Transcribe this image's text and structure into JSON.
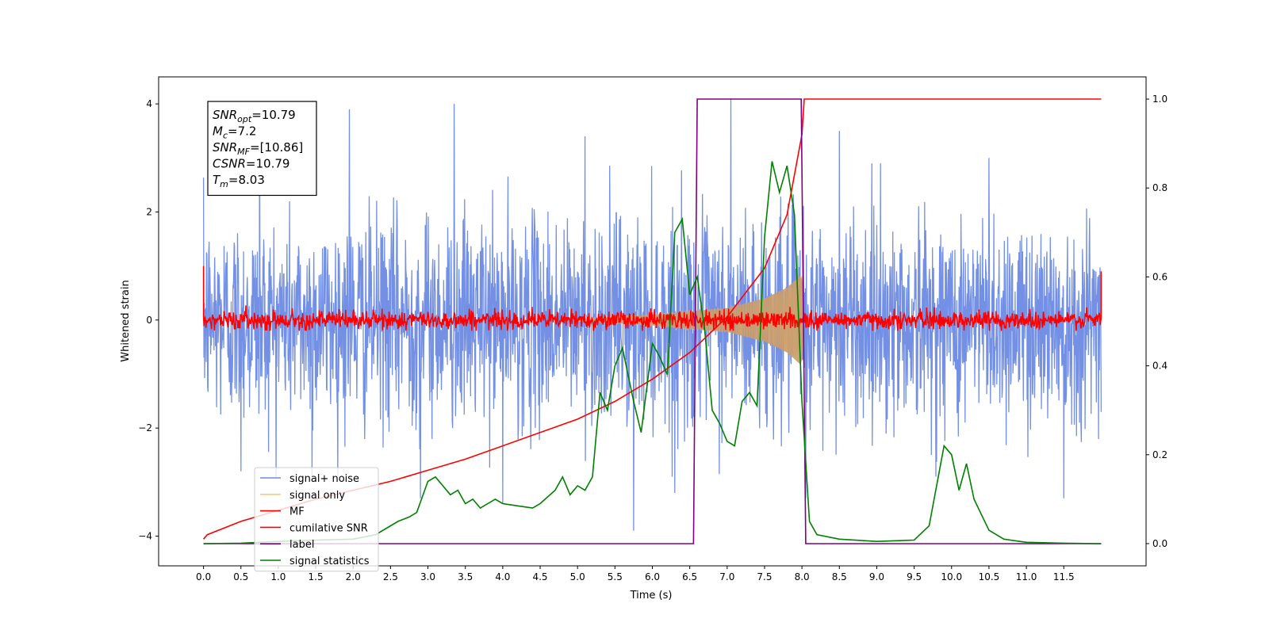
{
  "chart_data": {
    "type": "line",
    "xlabel": "Time (s)",
    "ylabel_left": "Whitened strain",
    "ylabel_right": "",
    "xlim": [
      -0.6,
      12.6
    ],
    "ylim_left": [
      -4.55,
      4.5
    ],
    "ylim_right": [
      -0.05,
      1.05
    ],
    "x_ticks": [
      "0.0",
      "0.5",
      "1.0",
      "1.5",
      "2.0",
      "2.5",
      "3.0",
      "3.5",
      "4.0",
      "4.5",
      "5.0",
      "5.5",
      "6.0",
      "6.5",
      "7.0",
      "7.5",
      "8.0",
      "8.5",
      "9.0",
      "9.5",
      "10.0",
      "10.5",
      "11.0",
      "11.5"
    ],
    "y_ticks_left": [
      "4",
      "2",
      "0",
      "−2",
      "−4"
    ],
    "y_ticks_right": [
      "1.0",
      "0.8",
      "0.6",
      "0.4",
      "0.2",
      "0.0"
    ],
    "grid": false,
    "legend_placement": "lower-left",
    "series": [
      {
        "name": "signal+ noise",
        "axis": "left",
        "color": "#6c8ae4",
        "description_values": {
          "noise_envelope_typical": [
            -2.3,
            2.3
          ],
          "occasional_peaks": 3.9
        },
        "peaks": [
          [
            0.75,
            3.8
          ],
          [
            1.95,
            3.9
          ],
          [
            3.35,
            4.0
          ],
          [
            5.1,
            3.4
          ],
          [
            7.05,
            4.1
          ],
          [
            8.5,
            3.5
          ],
          [
            9.05,
            2.9
          ],
          [
            10.5,
            3.0
          ]
        ],
        "troughs": [
          [
            0.5,
            -2.8
          ],
          [
            1.45,
            -2.9
          ],
          [
            2.9,
            -3.3
          ],
          [
            4.0,
            -3.4
          ],
          [
            5.75,
            -3.9
          ],
          [
            6.3,
            -3.2
          ],
          [
            8.05,
            -3.3
          ],
          [
            11.5,
            -3.3
          ]
        ]
      },
      {
        "name": "signal only",
        "axis": "left",
        "color": "#fdc77a",
        "chirp_start": 5.0,
        "chirp_end": 8.03,
        "envelope": [
          [
            5.0,
            0.02
          ],
          [
            6.0,
            0.1
          ],
          [
            7.0,
            0.22
          ],
          [
            7.5,
            0.4
          ],
          [
            7.8,
            0.6
          ],
          [
            8.0,
            0.85
          ],
          [
            8.03,
            0.0
          ]
        ]
      },
      {
        "name": "MF",
        "axis": "left",
        "color": "#ff0000",
        "noise_amplitude": 0.12,
        "edge_values": [
          [
            0.0,
            1.0
          ],
          [
            12.0,
            0.9
          ]
        ]
      },
      {
        "name": "cumilative SNR",
        "axis": "right",
        "color": "#ff0000",
        "x": [
          0.0,
          0.05,
          0.5,
          1.0,
          1.5,
          2.0,
          2.5,
          3.0,
          3.5,
          4.0,
          4.5,
          5.0,
          5.5,
          6.0,
          6.5,
          7.0,
          7.5,
          7.8,
          8.0,
          8.03,
          12.0
        ],
        "y": [
          0.01,
          0.02,
          0.05,
          0.075,
          0.1,
          0.12,
          0.14,
          0.165,
          0.19,
          0.22,
          0.25,
          0.28,
          0.32,
          0.37,
          0.43,
          0.51,
          0.62,
          0.74,
          0.92,
          1.0,
          1.0
        ]
      },
      {
        "name": "label",
        "axis": "right",
        "color": "#800080",
        "x": [
          0.0,
          6.55,
          6.6,
          7.99,
          8.05,
          12.0
        ],
        "y": [
          0.0,
          0.0,
          1.0,
          1.0,
          0.0,
          0.0
        ]
      },
      {
        "name": "signal statistics",
        "axis": "right",
        "color": "#008000",
        "x": [
          0.0,
          0.5,
          1.0,
          1.5,
          2.0,
          2.3,
          2.5,
          2.6,
          2.75,
          2.85,
          3.0,
          3.1,
          3.2,
          3.3,
          3.4,
          3.5,
          3.6,
          3.7,
          3.8,
          3.9,
          4.0,
          4.2,
          4.4,
          4.5,
          4.7,
          4.8,
          4.9,
          5.0,
          5.1,
          5.2,
          5.3,
          5.4,
          5.5,
          5.6,
          5.75,
          5.85,
          6.0,
          6.1,
          6.2,
          6.3,
          6.4,
          6.5,
          6.6,
          6.7,
          6.8,
          6.9,
          7.0,
          7.1,
          7.2,
          7.3,
          7.4,
          7.5,
          7.6,
          7.7,
          7.8,
          7.9,
          8.0,
          8.1,
          8.2,
          8.5,
          9.0,
          9.5,
          9.7,
          9.9,
          10.0,
          10.1,
          10.2,
          10.3,
          10.5,
          10.7,
          11.0,
          11.5,
          12.0
        ],
        "y": [
          0.0,
          0.001,
          0.005,
          0.008,
          0.01,
          0.02,
          0.04,
          0.05,
          0.06,
          0.07,
          0.14,
          0.15,
          0.13,
          0.11,
          0.12,
          0.09,
          0.1,
          0.08,
          0.09,
          0.1,
          0.09,
          0.085,
          0.08,
          0.09,
          0.12,
          0.15,
          0.11,
          0.13,
          0.12,
          0.15,
          0.34,
          0.3,
          0.4,
          0.44,
          0.32,
          0.25,
          0.45,
          0.42,
          0.38,
          0.7,
          0.73,
          0.56,
          0.6,
          0.48,
          0.3,
          0.27,
          0.23,
          0.22,
          0.32,
          0.34,
          0.31,
          0.69,
          0.86,
          0.79,
          0.85,
          0.74,
          0.32,
          0.05,
          0.02,
          0.01,
          0.005,
          0.008,
          0.04,
          0.22,
          0.2,
          0.12,
          0.18,
          0.1,
          0.03,
          0.01,
          0.003,
          0.001,
          0.0
        ]
      }
    ],
    "annotations": {
      "stats_box": [
        {
          "sym": "SNR",
          "sub": "opt",
          "val": "=10.79"
        },
        {
          "sym": "M",
          "sub": "c",
          "val": "=7.2"
        },
        {
          "sym": "SNR",
          "sub": "MF",
          "val": "=[10.86]"
        },
        {
          "sym": "CSNR",
          "sub": "",
          "val": "=10.79"
        },
        {
          "sym": "T",
          "sub": "m",
          "val": "=8.03"
        }
      ]
    }
  }
}
